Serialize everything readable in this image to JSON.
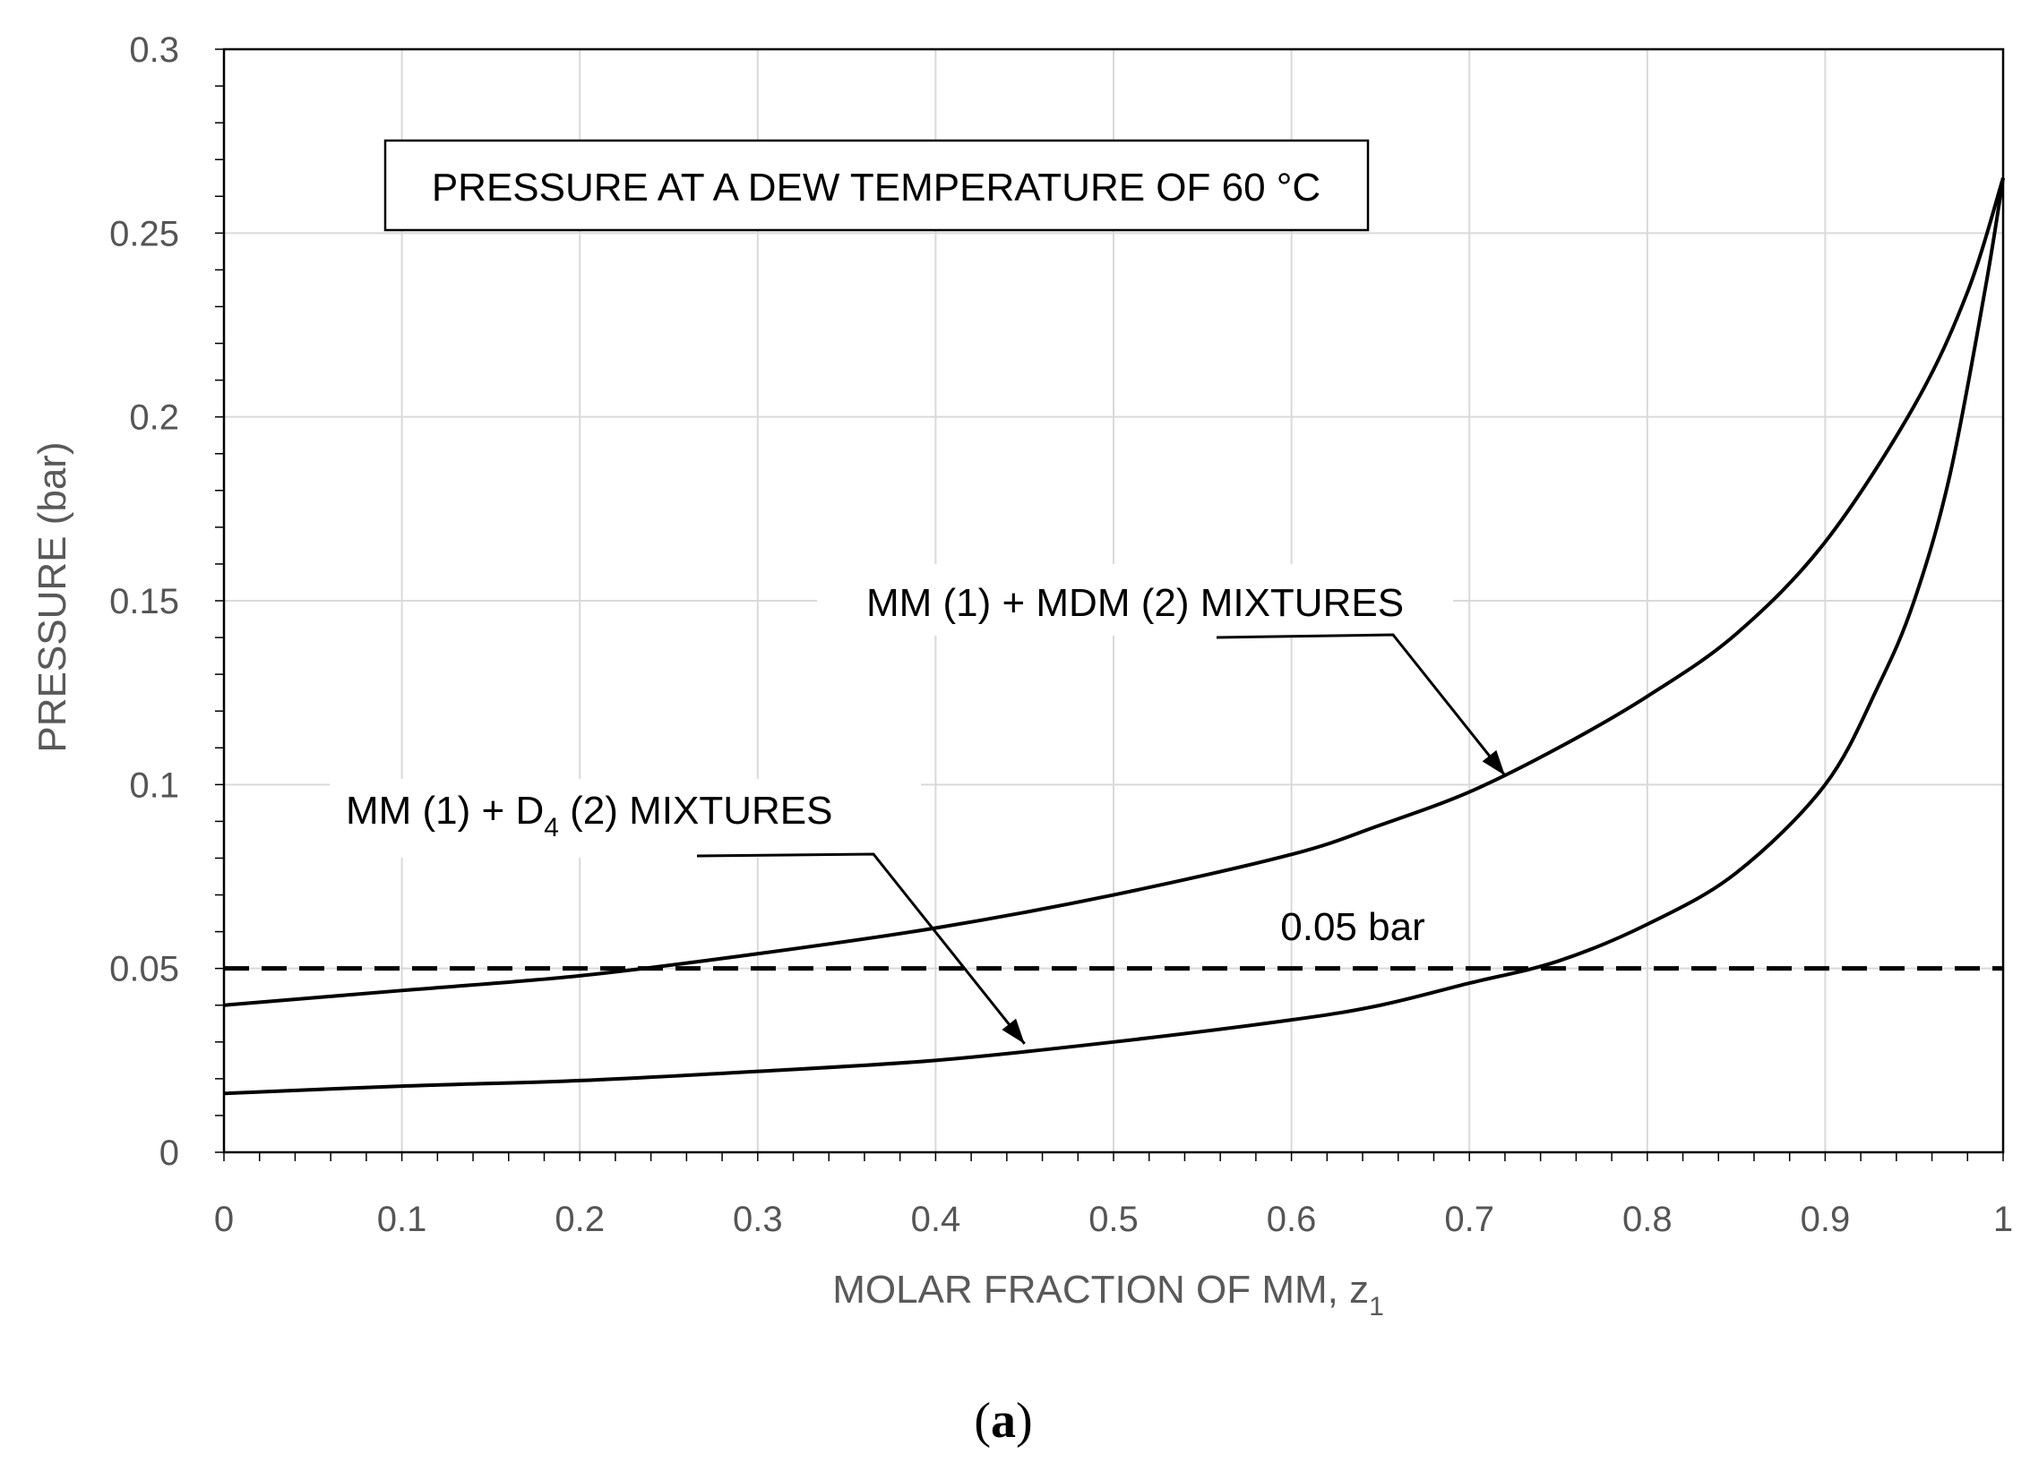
{
  "chart_data": {
    "type": "line",
    "title": "PRESSURE AT A DEW TEMPERATURE OF 60 °C",
    "xlabel": "MOLAR FRACTION OF MM, z",
    "xlabel_subscript": "1",
    "ylabel": "PRESSURE (bar)",
    "xlim": [
      0,
      1
    ],
    "ylim": [
      0,
      0.3
    ],
    "x_ticks": [
      "0",
      "0.1",
      "0.2",
      "0.3",
      "0.4",
      "0.5",
      "0.6",
      "0.7",
      "0.8",
      "0.9",
      "1"
    ],
    "y_ticks": [
      "0",
      "0.05",
      "0.1",
      "0.15",
      "0.2",
      "0.25",
      "0.3"
    ],
    "grid": true,
    "series": [
      {
        "name": "MM (1) + MDM (2) MIXTURES",
        "x": [
          0,
          0.1,
          0.2,
          0.3,
          0.4,
          0.5,
          0.6,
          0.65,
          0.7,
          0.75,
          0.8,
          0.85,
          0.9,
          0.95,
          0.98,
          1.0
        ],
        "y": [
          0.04,
          0.044,
          0.048,
          0.054,
          0.061,
          0.07,
          0.081,
          0.089,
          0.098,
          0.11,
          0.124,
          0.141,
          0.166,
          0.203,
          0.234,
          0.265
        ]
      },
      {
        "name": "MM (1) + D4 (2) MIXTURES",
        "x": [
          0,
          0.1,
          0.2,
          0.3,
          0.4,
          0.5,
          0.6,
          0.65,
          0.7,
          0.75,
          0.8,
          0.85,
          0.9,
          0.93,
          0.95,
          0.97,
          0.99,
          1.0
        ],
        "y": [
          0.016,
          0.018,
          0.0195,
          0.022,
          0.025,
          0.03,
          0.036,
          0.04,
          0.046,
          0.052,
          0.062,
          0.076,
          0.1,
          0.127,
          0.15,
          0.184,
          0.235,
          0.265
        ]
      },
      {
        "name": "0.05 bar",
        "style": "dashed",
        "x": [
          0,
          1
        ],
        "y": [
          0.05,
          0.05
        ]
      }
    ],
    "annotations": [
      {
        "text": "MM (1) + MDM (2) MIXTURES",
        "arrow_x": 0.72,
        "arrow_y": 0.1025
      },
      {
        "text_main": "MM (1) + D",
        "text_sub": "4",
        "text_tail": " (2) MIXTURES",
        "arrow_x": 0.45,
        "arrow_y": 0.0295
      },
      {
        "text": "0.05 bar"
      }
    ],
    "caption": "(a)"
  }
}
